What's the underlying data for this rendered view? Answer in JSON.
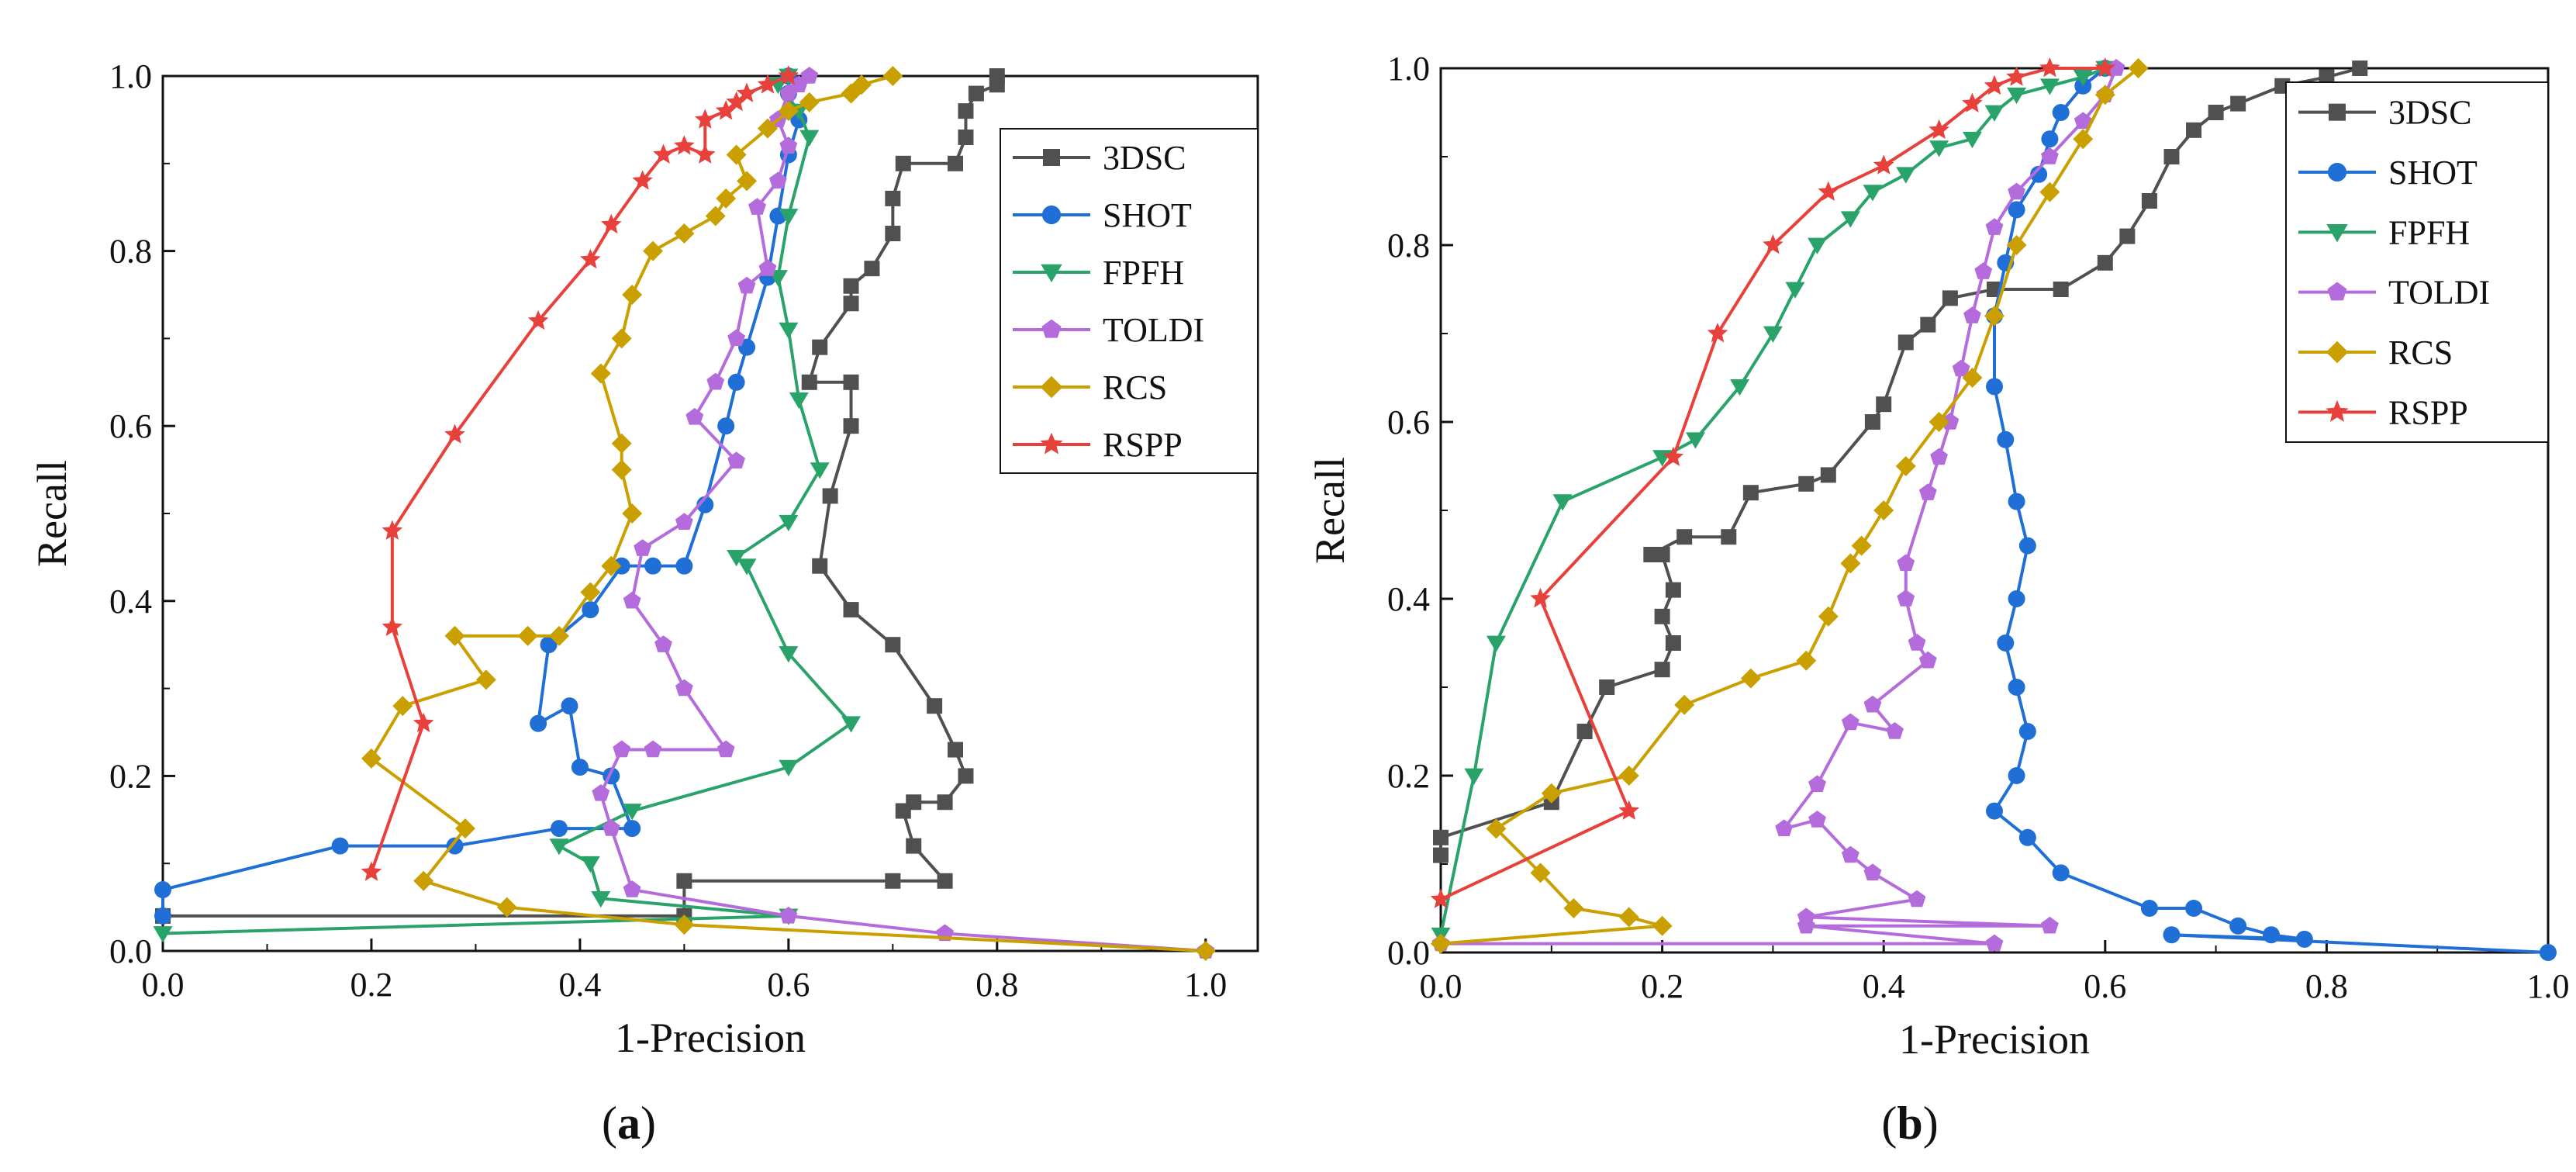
{
  "figure": {
    "captions": [
      "a",
      "b"
    ]
  },
  "chart_data": [
    {
      "type": "line",
      "panel": "a",
      "caption": "a",
      "title": "",
      "xlabel": "1-Precision",
      "ylabel": "Recall",
      "xlim": [
        0,
        1.05
      ],
      "ylim": [
        0,
        1.0
      ],
      "xticks": [
        "0.0",
        "0.2",
        "0.4",
        "0.6",
        "0.8",
        "1.0"
      ],
      "yticks": [
        "0.0",
        "0.2",
        "0.4",
        "0.6",
        "0.8",
        "1.0"
      ],
      "legend_position": "top-right",
      "series": [
        {
          "name": "3DSC",
          "color": "#505050",
          "marker": "square",
          "x": [
            0.0,
            0.5,
            0.5,
            0.7,
            0.75,
            0.72,
            0.71,
            0.72,
            0.75,
            0.77,
            0.76,
            0.74,
            0.7,
            0.66,
            0.63,
            0.64,
            0.66,
            0.66,
            0.62,
            0.63,
            0.66,
            0.66,
            0.68,
            0.7,
            0.7,
            0.71,
            0.76,
            0.77,
            0.77,
            0.78,
            0.8,
            0.8
          ],
          "y": [
            0.04,
            0.04,
            0.08,
            0.08,
            0.08,
            0.12,
            0.16,
            0.17,
            0.17,
            0.2,
            0.23,
            0.28,
            0.35,
            0.39,
            0.44,
            0.52,
            0.6,
            0.65,
            0.65,
            0.69,
            0.74,
            0.76,
            0.78,
            0.82,
            0.86,
            0.9,
            0.9,
            0.93,
            0.96,
            0.98,
            0.99,
            1.0
          ]
        },
        {
          "name": "SHOT",
          "color": "#1f6fd6",
          "marker": "circle",
          "x": [
            0.0,
            0.0,
            0.17,
            0.28,
            0.38,
            0.45,
            0.43,
            0.4,
            0.39,
            0.36,
            0.37,
            0.41,
            0.44,
            0.47,
            0.5,
            0.52,
            0.54,
            0.55,
            0.56,
            0.58,
            0.59,
            0.6,
            0.61,
            0.6,
            0.6
          ],
          "y": [
            0.04,
            0.07,
            0.12,
            0.12,
            0.14,
            0.14,
            0.2,
            0.21,
            0.28,
            0.26,
            0.35,
            0.39,
            0.44,
            0.44,
            0.44,
            0.51,
            0.6,
            0.65,
            0.69,
            0.77,
            0.84,
            0.91,
            0.95,
            0.98,
            1.0
          ]
        },
        {
          "name": "FPFH",
          "color": "#2aa36a",
          "marker": "triangle-down",
          "x": [
            0.0,
            0.6,
            0.42,
            0.41,
            0.38,
            0.45,
            0.6,
            0.66,
            0.6,
            0.56,
            0.55,
            0.6,
            0.63,
            0.61,
            0.6,
            0.59,
            0.6,
            0.62,
            0.61,
            0.59,
            0.6
          ],
          "y": [
            0.02,
            0.04,
            0.06,
            0.1,
            0.12,
            0.16,
            0.21,
            0.26,
            0.34,
            0.44,
            0.45,
            0.49,
            0.55,
            0.63,
            0.71,
            0.77,
            0.84,
            0.93,
            0.96,
            0.99,
            1.0
          ]
        },
        {
          "name": "TOLDI",
          "color": "#b46cdc",
          "marker": "pentagon",
          "x": [
            1.0,
            0.75,
            0.6,
            0.45,
            0.43,
            0.42,
            0.44,
            0.47,
            0.54,
            0.5,
            0.48,
            0.45,
            0.46,
            0.5,
            0.55,
            0.51,
            0.53,
            0.55,
            0.56,
            0.58,
            0.57,
            0.59,
            0.6,
            0.59,
            0.6,
            0.61,
            0.62
          ],
          "y": [
            0.0,
            0.02,
            0.04,
            0.07,
            0.14,
            0.18,
            0.23,
            0.23,
            0.23,
            0.3,
            0.35,
            0.4,
            0.46,
            0.49,
            0.56,
            0.61,
            0.65,
            0.7,
            0.76,
            0.78,
            0.85,
            0.88,
            0.92,
            0.95,
            0.98,
            0.99,
            1.0
          ]
        },
        {
          "name": "RCS",
          "color": "#c9a000",
          "marker": "diamond",
          "x": [
            1.0,
            0.5,
            0.33,
            0.25,
            0.29,
            0.2,
            0.23,
            0.31,
            0.28,
            0.35,
            0.38,
            0.41,
            0.43,
            0.45,
            0.44,
            0.44,
            0.42,
            0.44,
            0.45,
            0.47,
            0.5,
            0.53,
            0.54,
            0.56,
            0.55,
            0.58,
            0.6,
            0.62,
            0.66,
            0.67,
            0.7
          ],
          "y": [
            0.0,
            0.03,
            0.05,
            0.08,
            0.14,
            0.22,
            0.28,
            0.31,
            0.36,
            0.36,
            0.36,
            0.41,
            0.44,
            0.5,
            0.55,
            0.58,
            0.66,
            0.7,
            0.75,
            0.8,
            0.82,
            0.84,
            0.86,
            0.88,
            0.91,
            0.94,
            0.96,
            0.97,
            0.98,
            0.99,
            1.0
          ]
        },
        {
          "name": "RSPP",
          "color": "#e8403a",
          "marker": "star",
          "x": [
            0.2,
            0.25,
            0.22,
            0.22,
            0.28,
            0.36,
            0.41,
            0.43,
            0.46,
            0.48,
            0.5,
            0.52,
            0.52,
            0.54,
            0.55,
            0.56,
            0.58,
            0.6
          ],
          "y": [
            0.09,
            0.26,
            0.37,
            0.48,
            0.59,
            0.72,
            0.79,
            0.83,
            0.88,
            0.91,
            0.92,
            0.91,
            0.95,
            0.96,
            0.97,
            0.98,
            0.99,
            1.0
          ]
        }
      ]
    },
    {
      "type": "line",
      "panel": "b",
      "caption": "b",
      "title": "",
      "xlabel": "1-Precision",
      "ylabel": "Recall",
      "xlim": [
        0,
        1.0
      ],
      "ylim": [
        0,
        1.0
      ],
      "xticks": [
        "0.0",
        "0.2",
        "0.4",
        "0.6",
        "0.8",
        "1.0"
      ],
      "yticks": [
        "0.0",
        "0.2",
        "0.4",
        "0.6",
        "0.8",
        "1.0"
      ],
      "legend_position": "top-right",
      "series": [
        {
          "name": "3DSC",
          "color": "#505050",
          "marker": "square",
          "x": [
            0.0,
            0.0,
            0.1,
            0.13,
            0.15,
            0.2,
            0.21,
            0.2,
            0.21,
            0.2,
            0.19,
            0.22,
            0.26,
            0.28,
            0.33,
            0.35,
            0.39,
            0.4,
            0.42,
            0.44,
            0.46,
            0.5,
            0.56,
            0.6,
            0.62,
            0.64,
            0.66,
            0.68,
            0.7,
            0.72,
            0.76,
            0.8,
            0.83
          ],
          "y": [
            0.11,
            0.13,
            0.17,
            0.25,
            0.3,
            0.32,
            0.35,
            0.38,
            0.41,
            0.45,
            0.45,
            0.47,
            0.47,
            0.52,
            0.53,
            0.54,
            0.6,
            0.62,
            0.69,
            0.71,
            0.74,
            0.75,
            0.75,
            0.78,
            0.81,
            0.85,
            0.9,
            0.93,
            0.95,
            0.96,
            0.98,
            0.99,
            1.0
          ]
        },
        {
          "name": "SHOT",
          "color": "#1f6fd6",
          "marker": "circle",
          "x": [
            1.0,
            0.66,
            0.78,
            0.75,
            0.72,
            0.68,
            0.64,
            0.56,
            0.53,
            0.5,
            0.52,
            0.53,
            0.52,
            0.51,
            0.52,
            0.53,
            0.52,
            0.51,
            0.5,
            0.5,
            0.51,
            0.52,
            0.54,
            0.55,
            0.56,
            0.58,
            0.6
          ],
          "y": [
            0.0,
            0.02,
            0.015,
            0.02,
            0.03,
            0.05,
            0.05,
            0.09,
            0.13,
            0.16,
            0.2,
            0.25,
            0.3,
            0.35,
            0.4,
            0.46,
            0.51,
            0.58,
            0.64,
            0.72,
            0.78,
            0.84,
            0.88,
            0.92,
            0.95,
            0.98,
            1.0
          ]
        },
        {
          "name": "FPFH",
          "color": "#2aa36a",
          "marker": "triangle-down",
          "x": [
            0.0,
            0.03,
            0.05,
            0.11,
            0.2,
            0.23,
            0.27,
            0.3,
            0.32,
            0.34,
            0.37,
            0.39,
            0.42,
            0.45,
            0.48,
            0.5,
            0.52,
            0.55,
            0.58,
            0.6
          ],
          "y": [
            0.02,
            0.2,
            0.35,
            0.51,
            0.56,
            0.58,
            0.64,
            0.7,
            0.75,
            0.8,
            0.83,
            0.86,
            0.88,
            0.91,
            0.92,
            0.95,
            0.97,
            0.98,
            0.99,
            1.0
          ]
        },
        {
          "name": "TOLDI",
          "color": "#b46cdc",
          "marker": "pentagon",
          "x": [
            0.0,
            0.5,
            0.33,
            0.55,
            0.33,
            0.43,
            0.39,
            0.37,
            0.34,
            0.31,
            0.34,
            0.37,
            0.41,
            0.39,
            0.44,
            0.43,
            0.42,
            0.42,
            0.44,
            0.45,
            0.46,
            0.47,
            0.48,
            0.49,
            0.5,
            0.52,
            0.55,
            0.58,
            0.6,
            0.61
          ],
          "y": [
            0.01,
            0.01,
            0.03,
            0.03,
            0.04,
            0.06,
            0.09,
            0.11,
            0.15,
            0.14,
            0.19,
            0.26,
            0.25,
            0.28,
            0.33,
            0.35,
            0.4,
            0.44,
            0.52,
            0.56,
            0.6,
            0.66,
            0.72,
            0.77,
            0.82,
            0.86,
            0.9,
            0.94,
            0.97,
            1.0
          ]
        },
        {
          "name": "RCS",
          "color": "#c9a000",
          "marker": "diamond",
          "x": [
            0.0,
            0.2,
            0.17,
            0.12,
            0.09,
            0.05,
            0.1,
            0.17,
            0.22,
            0.28,
            0.33,
            0.35,
            0.37,
            0.38,
            0.4,
            0.42,
            0.45,
            0.48,
            0.5,
            0.52,
            0.55,
            0.58,
            0.6,
            0.63
          ],
          "y": [
            0.01,
            0.03,
            0.04,
            0.05,
            0.09,
            0.14,
            0.18,
            0.2,
            0.28,
            0.31,
            0.33,
            0.38,
            0.44,
            0.46,
            0.5,
            0.55,
            0.6,
            0.65,
            0.72,
            0.8,
            0.86,
            0.92,
            0.97,
            1.0
          ]
        },
        {
          "name": "RSPP",
          "color": "#e8403a",
          "marker": "star",
          "x": [
            0.0,
            0.17,
            0.09,
            0.21,
            0.25,
            0.3,
            0.35,
            0.4,
            0.45,
            0.48,
            0.5,
            0.52,
            0.55,
            0.6
          ],
          "y": [
            0.06,
            0.16,
            0.4,
            0.56,
            0.7,
            0.8,
            0.86,
            0.89,
            0.93,
            0.96,
            0.98,
            0.99,
            1.0,
            1.0
          ]
        }
      ]
    }
  ]
}
